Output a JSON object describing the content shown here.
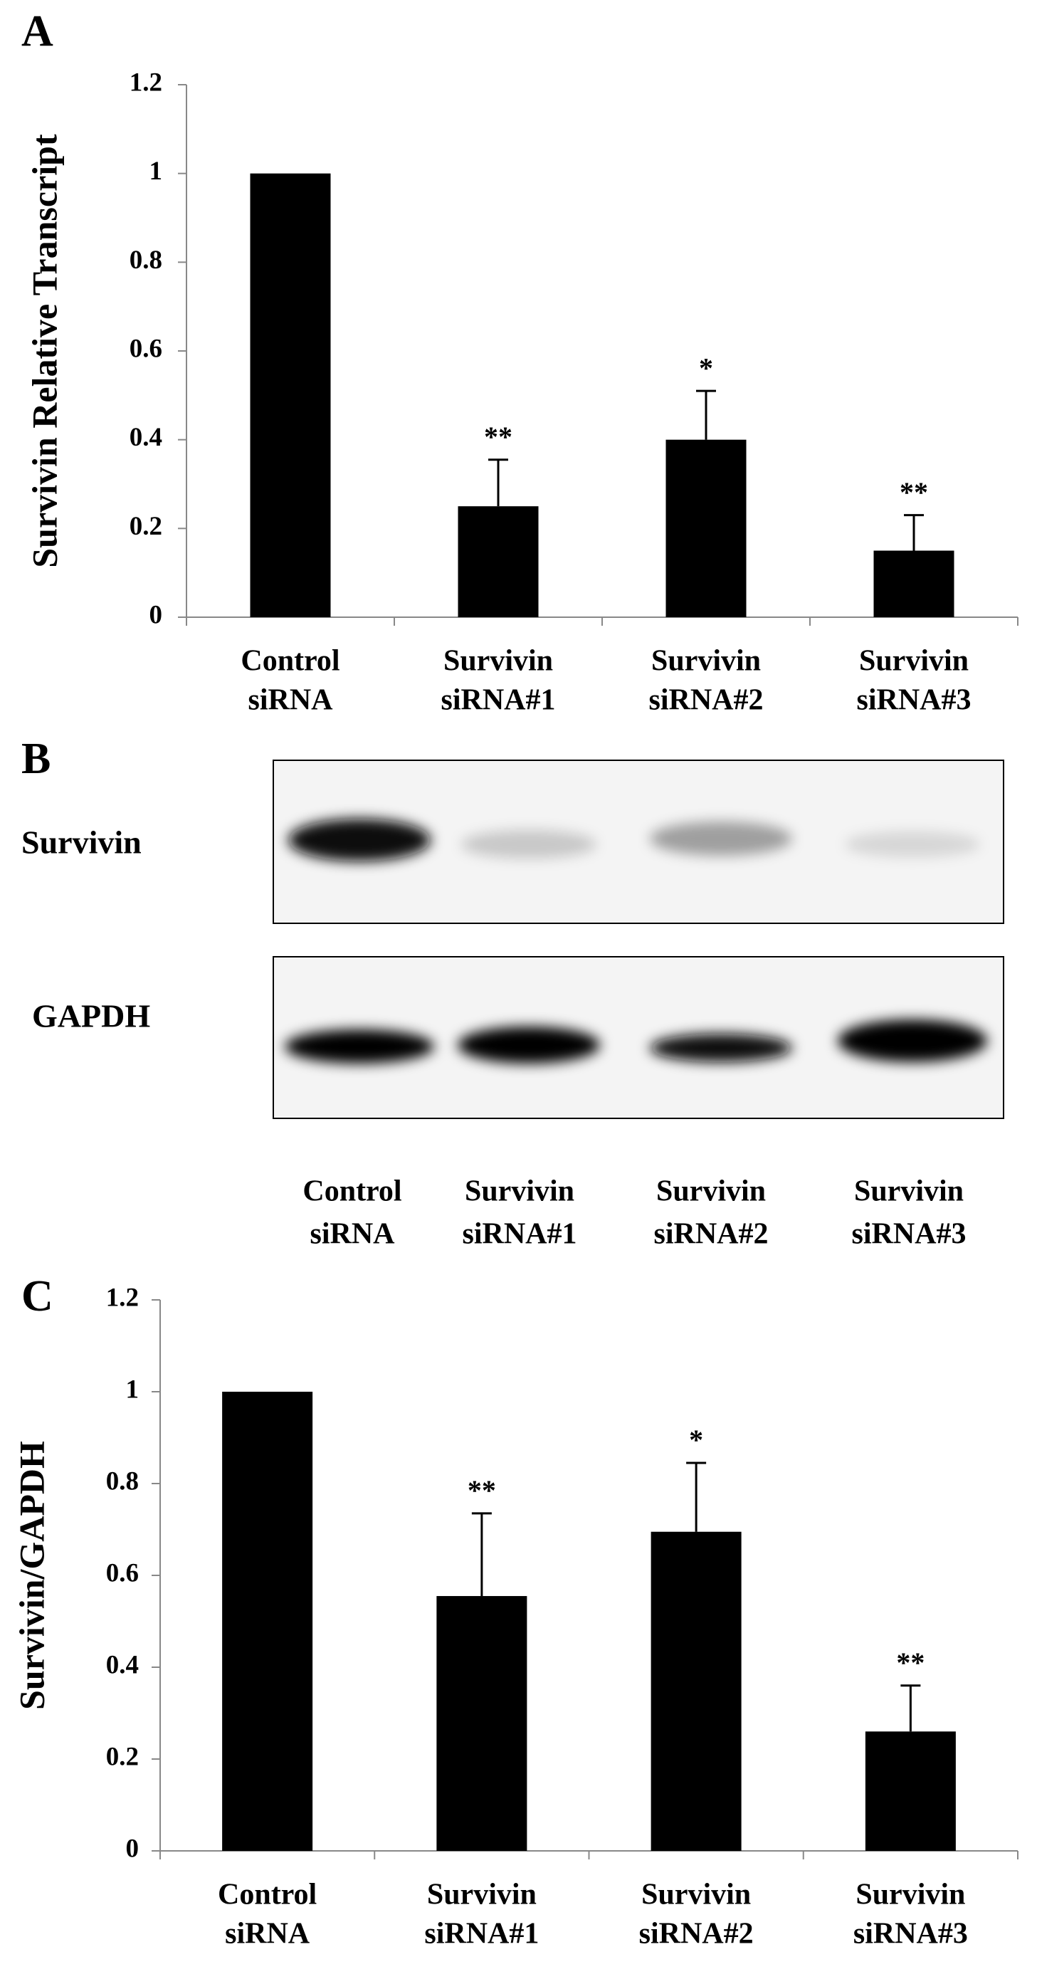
{
  "chart_data": [
    {
      "type": "bar",
      "panel_label": "A",
      "y_label": "Survivin Relative Transcript",
      "categories": [
        [
          "Control",
          "siRNA"
        ],
        [
          "Survivin",
          "siRNA#1"
        ],
        [
          "Survivin",
          "siRNA#2"
        ],
        [
          "Survivin",
          "siRNA#3"
        ]
      ],
      "values": [
        1,
        0.25,
        0.4,
        0.15
      ],
      "errors": [
        null,
        0.105,
        0.11,
        0.08
      ],
      "annotations": [
        null,
        "**",
        "*",
        "**"
      ],
      "color": "#000000",
      "ylim": [
        0,
        1.2
      ],
      "yticks": [
        0,
        0.2,
        0.4,
        0.6,
        0.8,
        1,
        1.2
      ]
    },
    {
      "type": "bar",
      "panel_label": "C",
      "y_label": "Survivin/GAPDH",
      "categories": [
        [
          "Control",
          "siRNA"
        ],
        [
          "Survivin",
          "siRNA#1"
        ],
        [
          "Survivin",
          "siRNA#2"
        ],
        [
          "Survivin",
          "siRNA#3"
        ]
      ],
      "values": [
        1,
        0.555,
        0.695,
        0.26
      ],
      "errors": [
        null,
        0.18,
        0.15,
        0.1
      ],
      "annotations": [
        null,
        "**",
        "*",
        "**"
      ],
      "color": "#000000",
      "ylim": [
        0,
        1.2
      ],
      "yticks": [
        0,
        0.2,
        0.4,
        0.6,
        0.8,
        1,
        1.2
      ]
    }
  ],
  "blot": {
    "panel_label": "B",
    "rows": [
      "Survivin",
      "GAPDH"
    ],
    "lanes": [
      [
        "Control",
        "siRNA"
      ],
      [
        "Survivin",
        "siRNA#1"
      ],
      [
        "Survivin",
        "siRNA#2"
      ],
      [
        "Survivin",
        "siRNA#3"
      ]
    ]
  }
}
